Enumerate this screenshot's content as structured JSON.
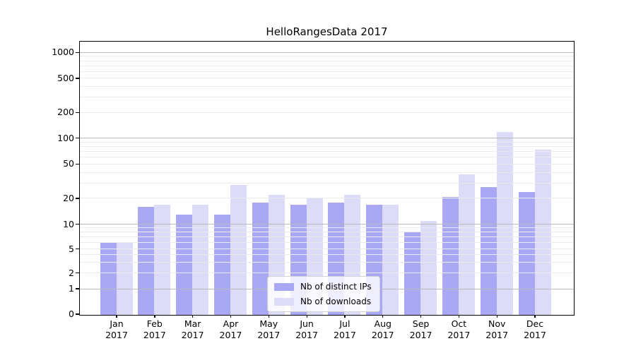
{
  "title": "HelloRangesData 2017",
  "chart_data": {
    "type": "bar",
    "title": "HelloRangesData 2017",
    "categories": [
      "Jan",
      "Feb",
      "Mar",
      "Apr",
      "May",
      "Jun",
      "Jul",
      "Aug",
      "Sep",
      "Oct",
      "Nov",
      "Dec"
    ],
    "category_year": "2017",
    "series": [
      {
        "name": "Nb of distinct IPs",
        "color": "#a8a8f4",
        "values": [
          6,
          16,
          13,
          13,
          18,
          17,
          18,
          17,
          8,
          21,
          27,
          24
        ]
      },
      {
        "name": "Nb of downloads",
        "color": "#dcdcf9",
        "values": [
          6,
          17,
          17,
          29,
          22,
          20,
          22,
          17,
          11,
          38,
          118,
          74
        ]
      }
    ],
    "xlabel": "",
    "ylabel": "",
    "y_scale": "symlog",
    "y_ticks": [
      0,
      1,
      2,
      5,
      10,
      20,
      50,
      100,
      200,
      500,
      1000
    ],
    "ylim": [
      0,
      1325
    ],
    "grid": true,
    "grid_major_at": [
      1,
      10,
      100,
      1000
    ],
    "legend_position": "inside-bottom-center",
    "legend": [
      "Nb of distinct IPs",
      "Nb of downloads"
    ]
  }
}
